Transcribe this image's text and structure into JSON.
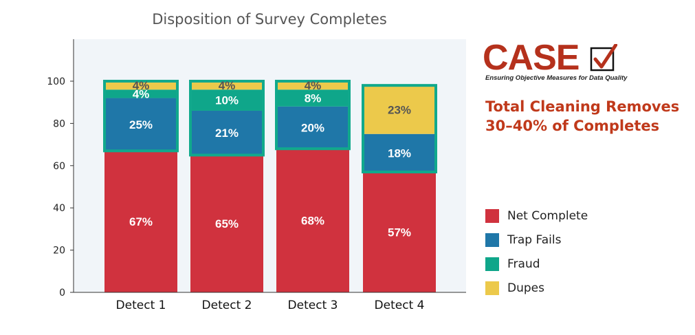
{
  "chart_data": {
    "type": "bar",
    "stacked": true,
    "title": "Disposition of Survey Completes",
    "categories": [
      "Detect 1",
      "Detect 2",
      "Detect 3",
      "Detect 4"
    ],
    "ylim": [
      0,
      100
    ],
    "yticks": [
      0,
      20,
      40,
      60,
      80,
      100
    ],
    "series": [
      {
        "name": "Net Complete",
        "color": "#d0323e",
        "values": [
          67,
          65,
          68,
          57
        ],
        "labels": [
          "67%",
          "65%",
          "68%",
          "57%"
        ]
      },
      {
        "name": "Trap Fails",
        "color": "#1f77a8",
        "values": [
          25,
          21,
          20,
          18
        ],
        "labels": [
          "25%",
          "21%",
          "20%",
          "18%"
        ]
      },
      {
        "name": "Fraud",
        "color": "#0fa68a",
        "values": [
          4,
          10,
          8,
          0
        ],
        "labels": [
          "4%",
          "10%",
          "8%",
          ""
        ]
      },
      {
        "name": "Dupes",
        "color": "#ecc94b",
        "values": [
          4,
          4,
          4,
          23
        ],
        "labels": [
          "4%",
          "4%",
          "4%",
          "23%"
        ]
      }
    ],
    "legend_position": "right",
    "grid": false,
    "plot_background": "#f1f5f9",
    "highlight_border_color": "#11a98c"
  },
  "logo": {
    "word": "CASE",
    "tagline": "Ensuring Objective Measures for Data Quality",
    "color": "#b5311c",
    "icon": "checkbox-check-icon"
  },
  "headline": "Total Cleaning Removes 30–40% of Completes"
}
